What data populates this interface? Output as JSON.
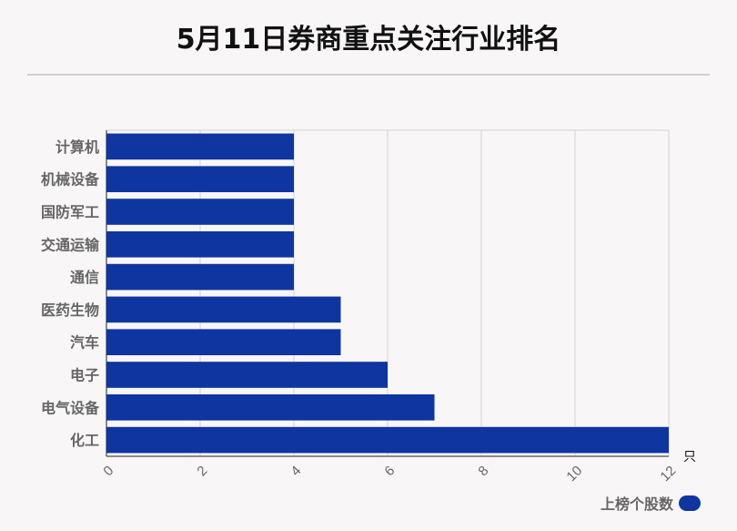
{
  "chart_data": {
    "type": "bar",
    "orientation": "horizontal",
    "title": "5月11日券商重点关注行业排名",
    "categories": [
      "计算机",
      "机械设备",
      "国防军工",
      "交通运输",
      "通信",
      "医药生物",
      "汽车",
      "电子",
      "电气设备",
      "化工"
    ],
    "series": [
      {
        "name": "上榜个股数",
        "values": [
          4,
          4,
          4,
          4,
          4,
          5,
          5,
          6,
          7,
          12
        ]
      }
    ],
    "xlim": [
      0,
      12
    ],
    "xticks": [
      0,
      2,
      4,
      6,
      8,
      10,
      12
    ],
    "xunit": "只",
    "grid": true,
    "legend": "bottom-right",
    "bar_color": "#0f35a0"
  }
}
